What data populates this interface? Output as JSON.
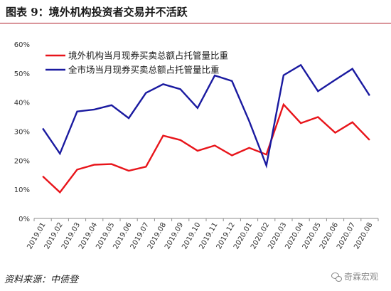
{
  "header": {
    "title": "图表 9：境外机构投资者交易并不活跃"
  },
  "footer": {
    "source": "资料来源：中债登",
    "watermark": "奇霖宏观"
  },
  "chart_data": {
    "type": "line",
    "categories": [
      "2019.01",
      "2019.02",
      "2019.03",
      "2019.04",
      "2019.05",
      "2019.06",
      "2019.07",
      "2019.08",
      "2019.09",
      "2019.10",
      "2019.11",
      "2019.12",
      "2020.01",
      "2020.02",
      "2020.03",
      "2020.04",
      "2020.05",
      "2020.06",
      "2020.07",
      "2020.08"
    ],
    "series": [
      {
        "name": "境外机构当月现券买卖总额占托管量比重",
        "color": "#e8141a",
        "values": [
          14.5,
          9.0,
          16.8,
          18.5,
          18.7,
          16.4,
          17.8,
          28.5,
          27.0,
          23.3,
          25.1,
          21.7,
          24.3,
          22.0,
          39.2,
          32.8,
          34.9,
          29.5,
          33.1,
          27.0
        ]
      },
      {
        "name": "全市场当月现券买卖总额占托管量比重",
        "color": "#1a1aa0",
        "values": [
          31.0,
          22.3,
          36.8,
          37.5,
          39.0,
          34.5,
          43.2,
          46.2,
          44.5,
          38.0,
          49.2,
          47.3,
          33.5,
          18.2,
          49.3,
          52.8,
          43.8,
          47.7,
          51.5,
          42.3
        ]
      }
    ],
    "y_ticks": [
      "0%",
      "10%",
      "20%",
      "30%",
      "40%",
      "50%",
      "60%"
    ],
    "ylim": [
      0,
      60
    ],
    "grid": false,
    "legend": "top-left"
  }
}
